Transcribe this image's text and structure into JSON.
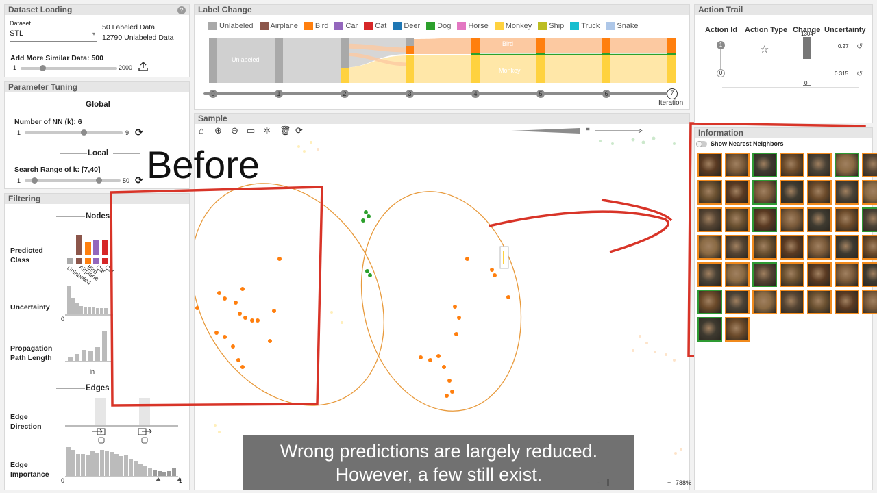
{
  "dataset_panel": {
    "title": "Dataset Loading",
    "help": "?",
    "dataset_label": "Dataset",
    "dataset_value": "STL",
    "labeled": "50 Labeled Data",
    "unlabeled": "12790 Unlabeled Data",
    "add_more": "Add More Similar Data: 500",
    "slider_min": "1",
    "slider_max": "2000",
    "slider_level": 0.25
  },
  "param_panel": {
    "title": "Parameter Tuning",
    "global": "Global",
    "nn_label": "Number of NN (k): 6",
    "nn_min": "1",
    "nn_max": "9",
    "local": "Local",
    "range_label": "Search Range of k: [7,40]",
    "range_min": "1",
    "range_max": "50"
  },
  "filter_panel": {
    "title": "Filtering",
    "nodes": "Nodes",
    "predicted_class": "Predicted\nClass",
    "class_axis": [
      "Unlabeled",
      "Airplane",
      "Bird",
      "Car",
      "Cat"
    ],
    "uncertainty": "Uncertainty",
    "unc_min": "0",
    "prop_path": "Propagation\nPath Length",
    "prop_axis": "in",
    "edges": "Edges",
    "edge_direction": "Edge\nDirection",
    "edge_importance": "Edge\nImportance",
    "imp_min": "0",
    "imp_max": "1"
  },
  "label_change": {
    "title": "Label Change",
    "legend": [
      {
        "name": "Unlabeled",
        "color": "#a9a9a9"
      },
      {
        "name": "Airplane",
        "color": "#8c564b"
      },
      {
        "name": "Bird",
        "color": "#ff7f0e"
      },
      {
        "name": "Car",
        "color": "#9467bd"
      },
      {
        "name": "Cat",
        "color": "#d62728"
      },
      {
        "name": "Deer",
        "color": "#1f77b4"
      },
      {
        "name": "Dog",
        "color": "#2ca02c"
      },
      {
        "name": "Horse",
        "color": "#e377c2"
      },
      {
        "name": "Monkey",
        "color": "#ffd23f"
      },
      {
        "name": "Ship",
        "color": "#bcbd22"
      },
      {
        "name": "Truck",
        "color": "#17becf"
      },
      {
        "name": "Snake",
        "color": "#aec7e8"
      }
    ],
    "flow_labels": {
      "unlabeled": "Unlabeled",
      "bird": "Bird",
      "monkey": "Monkey"
    },
    "iterations": [
      "0",
      "1",
      "2",
      "3",
      "4",
      "5",
      "6",
      "7"
    ],
    "iteration_label": "Iteration"
  },
  "sample_panel": {
    "title": "Sample",
    "tools": [
      "home-icon",
      "zoom-in-icon",
      "zoom-out-icon",
      "fit-icon",
      "lasso-icon",
      "delete-icon",
      "refresh-icon"
    ],
    "legend_eq": "=",
    "zoom_level": "788%",
    "zoom_minus": "-",
    "zoom_plus": "+"
  },
  "annotation": {
    "before": "Before",
    "caption_line1": "Wrong predictions are largely reduced.",
    "caption_line2": "However, a few still exist."
  },
  "action_trail": {
    "title": "Action Trail",
    "headers": [
      "Action Id",
      "Action Type",
      "Change",
      "Uncertainty"
    ],
    "rows": [
      {
        "id": "1",
        "change_top": "1304",
        "uncertainty": "0.27"
      },
      {
        "id": "0",
        "change_bottom": "0",
        "uncertainty": "0.315"
      }
    ]
  },
  "information": {
    "title": "Information",
    "toggle_label": "Show Nearest Neighbors",
    "thumbs": [
      "o",
      "o",
      "g",
      "o",
      "o",
      "g",
      "o",
      "o",
      "o",
      "g",
      "o",
      "o",
      "o",
      "o",
      "o",
      "o",
      "g",
      "o",
      "o",
      "o",
      "g",
      "o",
      "o",
      "o",
      "o",
      "o",
      "o",
      "o",
      "o",
      "o",
      "g",
      "o",
      "o",
      "o",
      "o",
      "g",
      "o",
      "o",
      "o",
      "o",
      "o",
      "o",
      "g",
      "o"
    ]
  }
}
